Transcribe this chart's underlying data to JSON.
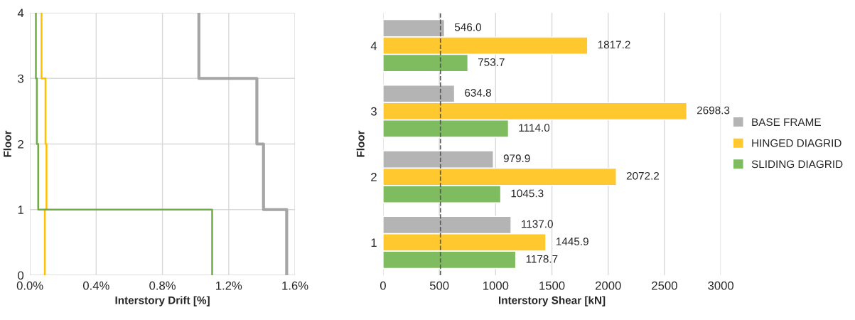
{
  "chart_data": [
    {
      "type": "line",
      "xlabel": "Interstory Drift [%]",
      "ylabel": "Floor",
      "xlim": [
        0,
        1.6
      ],
      "ylim": [
        0,
        4
      ],
      "xticks": [
        {
          "value": 0,
          "label": "0.0%"
        },
        {
          "value": 0.4,
          "label": "0.4%"
        },
        {
          "value": 0.8,
          "label": "0.8%"
        },
        {
          "value": 1.2,
          "label": "1.2%"
        },
        {
          "value": 1.6,
          "label": "1.6%"
        }
      ],
      "yticks": [
        0,
        1,
        2,
        3,
        4
      ],
      "grid": true,
      "legend": false,
      "marker": "none",
      "line_style": "solid",
      "series": [
        {
          "color": "#a5a5a5",
          "x": [
            1.55,
            1.55,
            1.41,
            1.41,
            1.37,
            1.37,
            1.02,
            1.02
          ],
          "values": [
            0,
            1,
            1,
            2,
            2,
            3,
            3,
            4
          ]
        },
        {
          "color": "#ffc000",
          "x": [
            0.09,
            0.09,
            0.1,
            0.1,
            0.094,
            0.094,
            0.07,
            0.07
          ],
          "values": [
            0,
            1,
            1,
            2,
            2,
            3,
            3,
            4
          ]
        },
        {
          "color": "#70ad47",
          "x": [
            1.1,
            1.1,
            0.05,
            0.05,
            0.042,
            0.042,
            0.036,
            0.036
          ],
          "values": [
            0,
            1,
            1,
            2,
            2,
            3,
            3,
            4
          ]
        }
      ]
    },
    {
      "type": "bar",
      "orientation": "horizontal",
      "xlabel": "Interstory Shear [kN]",
      "ylabel": "Floor",
      "categories": [
        "4",
        "3",
        "2",
        "1"
      ],
      "xlim": [
        0,
        3000
      ],
      "xticks": [
        0,
        500,
        1000,
        1500,
        2000,
        2500,
        3000
      ],
      "grid": "x",
      "legend": "right",
      "ref_lines": [
        {
          "axis": "x",
          "value": 510,
          "line_style": "dashed",
          "color": "#595959"
        }
      ],
      "series": [
        {
          "name": "BASE FRAME",
          "color": "#b4b4b4",
          "values": [
            546.0,
            634.8,
            979.9,
            1137.0
          ],
          "value_labels": [
            "546.0",
            "634.8",
            "979.9",
            "1137.0"
          ]
        },
        {
          "name": "HINGED DIAGRID",
          "color": "#ffc82e",
          "values": [
            1817.2,
            2698.3,
            2072.2,
            1445.9
          ],
          "value_labels": [
            "1817.2",
            "2698.3",
            "2072.2",
            "1445.9"
          ]
        },
        {
          "name": "SLIDING DIAGRID",
          "color": "#7fbb5f",
          "values": [
            753.7,
            1114.0,
            1045.3,
            1178.7
          ],
          "value_labels": [
            "753.7",
            "1114.0",
            "1045.3",
            "1178.7"
          ]
        }
      ]
    }
  ]
}
